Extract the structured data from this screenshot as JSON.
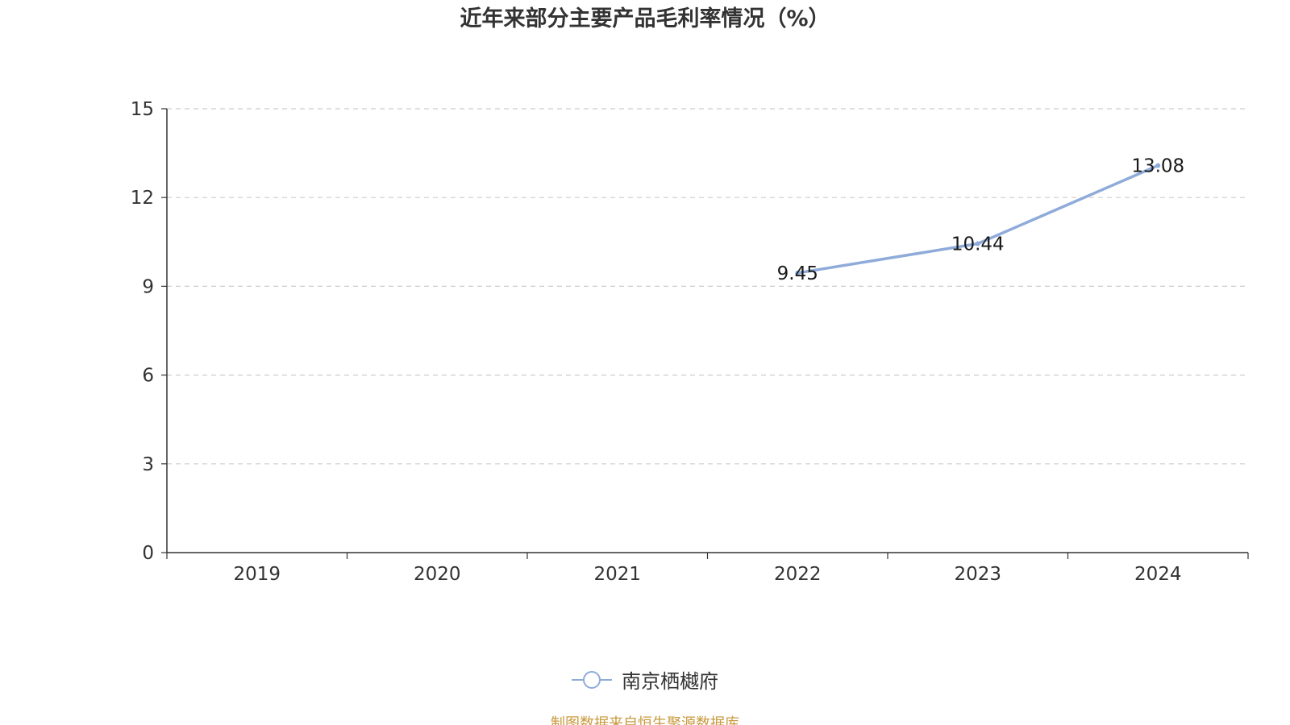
{
  "title": "近年来部分主要产品毛利率情况（%）",
  "source_note": "制图数据来自恒生聚源数据库",
  "colors": {
    "series": "#8eabda",
    "axis": "#333333",
    "grid": "#cccccc",
    "source": "#c99a3e"
  },
  "chart_data": {
    "type": "line",
    "title": "近年来部分主要产品毛利率情况（%）",
    "categories": [
      "2019",
      "2020",
      "2021",
      "2022",
      "2023",
      "2024"
    ],
    "series": [
      {
        "name": "南京栖樾府",
        "values": [
          null,
          null,
          null,
          9.45,
          10.44,
          13.08
        ],
        "labels": [
          "",
          "",
          "",
          "9.45",
          "10.44",
          "13.08"
        ]
      }
    ],
    "ylim": [
      0,
      15
    ],
    "yticks": [
      0,
      3,
      6,
      9,
      12,
      15
    ],
    "ytick_labels": [
      "0",
      "3",
      "6",
      "9",
      "12",
      "15"
    ],
    "grid": true,
    "legend": "bottom-center",
    "xlabel": "",
    "ylabel": ""
  }
}
